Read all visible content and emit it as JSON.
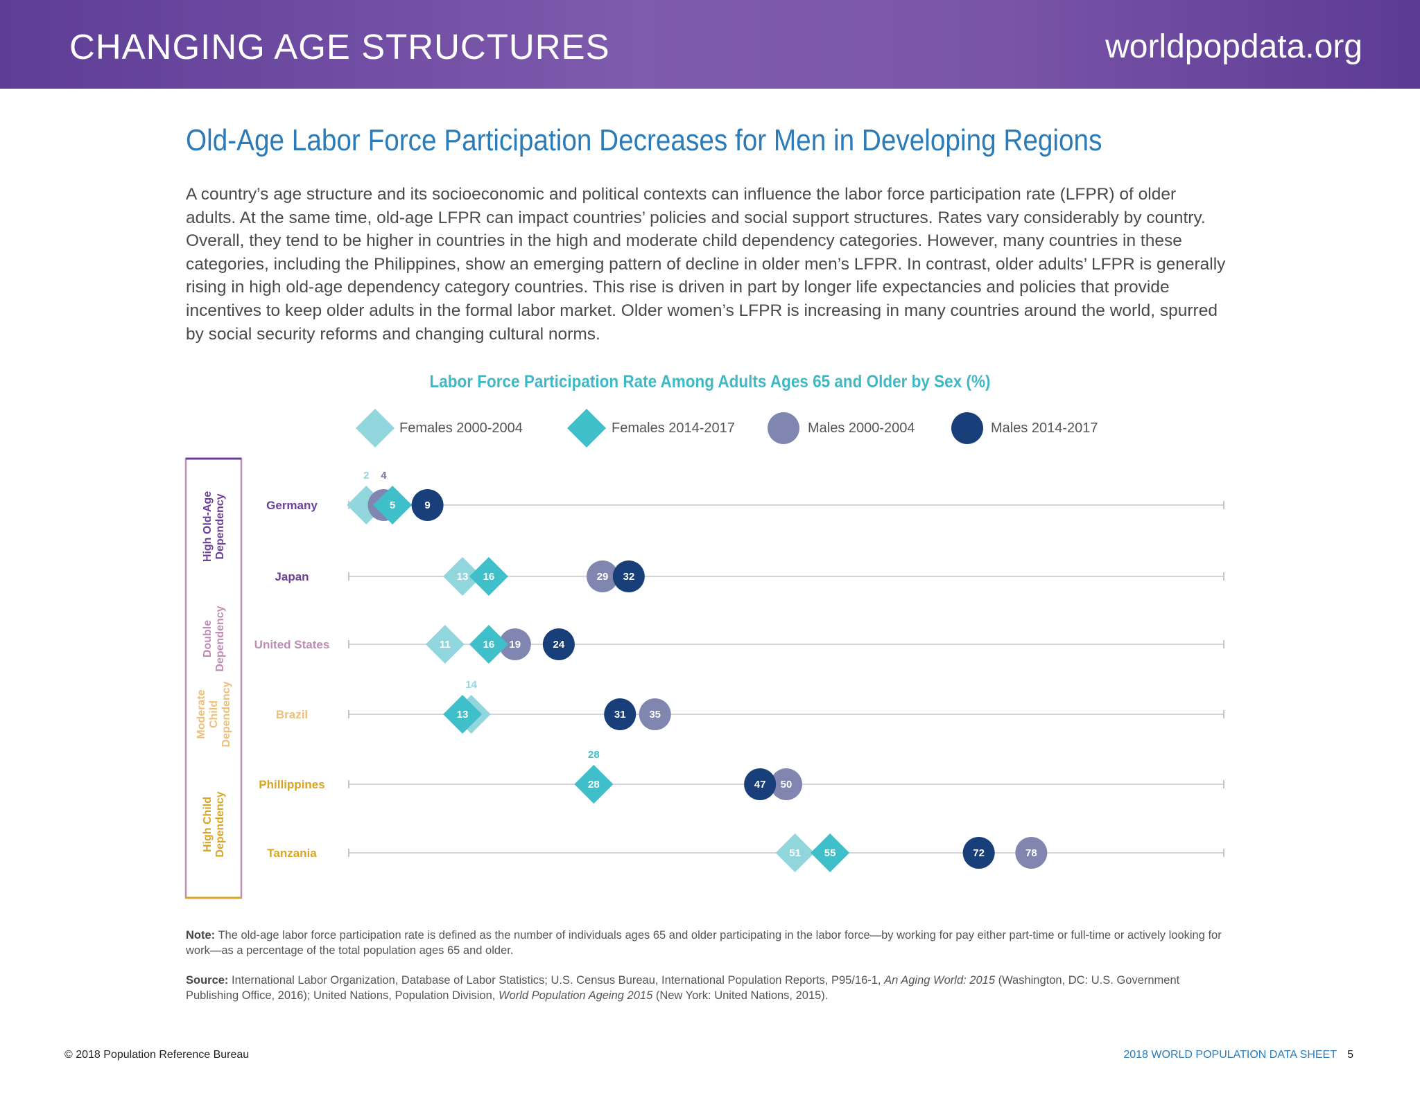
{
  "header": {
    "section_title": "CHANGING AGE STRUCTURES",
    "site": "worldpopdata.org"
  },
  "headline": "Old-Age Labor Force Participation Decreases for Men in Developing Regions",
  "intro": "A country’s age structure and its socioeconomic and political contexts can influence the labor force participation rate (LFPR) of older adults. At the same time, old-age LFPR can impact countries’ policies and social support structures. Rates vary considerably by country. Overall, they tend to be higher in countries in the high and moderate child dependency categories. However, many countries in these categories, including the Philippines, show an emerging pattern of decline in older men’s LFPR. In contrast, older adults’ LFPR is generally rising in high old-age dependency category countries. This rise is driven in part by longer life expectancies and policies that provide incentives to keep older adults in the formal labor market. Older women’s LFPR is increasing in many countries around the world, spurred by social security reforms and changing cultural norms.",
  "chart_data": {
    "type": "scatter",
    "title": "Labor Force Participation Rate Among Adults Ages 65 and Older by Sex (%)",
    "xlim": [
      0,
      100
    ],
    "categories": [
      "Germany",
      "Japan",
      "United States",
      "Brazil",
      "Phillippines",
      "Tanzania"
    ],
    "series": [
      {
        "name": "Females 2000-2004",
        "marker": "diamond",
        "color": "#92d6dd",
        "values": [
          2,
          13,
          11,
          14,
          28,
          51
        ]
      },
      {
        "name": "Females 2014-2017",
        "marker": "diamond",
        "color": "#3fbfc9",
        "values": [
          5,
          16,
          16,
          13,
          28,
          55
        ]
      },
      {
        "name": "Males 2000-2004",
        "marker": "circle",
        "color": "#8086b0",
        "values": [
          4,
          29,
          19,
          35,
          50,
          78
        ]
      },
      {
        "name": "Males 2014-2017",
        "marker": "circle",
        "color": "#183f7a",
        "values": [
          9,
          32,
          24,
          31,
          47,
          72
        ]
      }
    ],
    "dependency_groups": [
      {
        "label": "High Old-Age Dependency",
        "color": "#6a3f96",
        "rows": [
          "Germany",
          "Japan"
        ]
      },
      {
        "label": "Double Dependency",
        "color": "#c08bb5",
        "rows": [
          "United States"
        ]
      },
      {
        "label": "Moderate Child Dependency",
        "color": "#ecbf7a",
        "rows": [
          "Brazil"
        ]
      },
      {
        "label": "High Child Dependency",
        "color": "#d9a520",
        "rows": [
          "Phillippines",
          "Tanzania"
        ]
      }
    ],
    "row_label_colors": [
      "#6a3f96",
      "#6a3f96",
      "#c08bb5",
      "#ecbf7a",
      "#d9a520",
      "#d9a520"
    ]
  },
  "note": {
    "label": "Note:",
    "text": "The old-age labor force participation rate is defined as the number of individuals ages 65 and older participating in the labor force—by working for pay either part-time or full-time or actively looking for work—as a percentage of the total population ages 65 and older."
  },
  "source": {
    "label": "Source:",
    "text_1": "International Labor Organization, Database of Labor Statistics; U.S. Census Bureau, International Population Reports, P95/16-1, ",
    "italic_1": "An Aging World: 2015",
    "text_2": " (Washington, DC: U.S. Government Publishing Office, 2016); United Nations, Population Division, ",
    "italic_2": "World Population Ageing 2015",
    "text_3": " (New York: United Nations, 2015)."
  },
  "footer": {
    "copyright": "© 2018 Population Reference Bureau",
    "publication": "2018 WORLD POPULATION DATA SHEET",
    "page": "5"
  }
}
